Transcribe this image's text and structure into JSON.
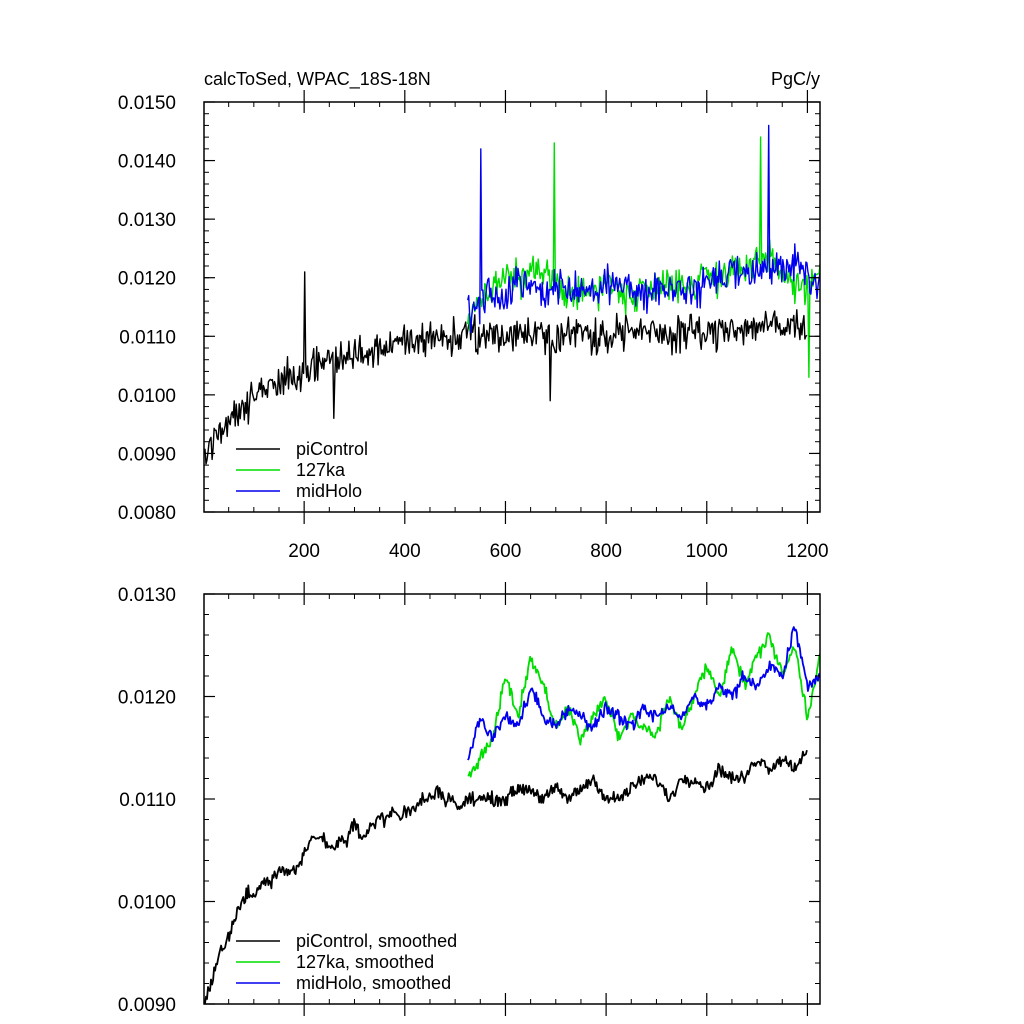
{
  "chart_data": [
    {
      "type": "line",
      "title": "calcToSed, WPAC_18S-18N",
      "units": "PgC/y",
      "xlim": [
        1,
        1225
      ],
      "ylim": [
        0.008,
        0.015
      ],
      "xticks": [
        200,
        400,
        600,
        800,
        1000,
        1200
      ],
      "xtick_labels": [
        "200",
        "400",
        "600",
        "800",
        "1000",
        "1200"
      ],
      "yticks": [
        0.008,
        0.009,
        0.01,
        0.011,
        0.012,
        0.013,
        0.014,
        0.015
      ],
      "ytick_labels": [
        "0.0080",
        "0.0090",
        "0.0100",
        "0.0110",
        "0.0120",
        "0.0130",
        "0.0140",
        "0.0150"
      ],
      "legend_position": "bottom-left",
      "series": [
        {
          "name": "piControl",
          "color": "#000000",
          "x": [
            1,
            25,
            50,
            75,
            100,
            125,
            150,
            175,
            200,
            225,
            250,
            275,
            300,
            325,
            350,
            375,
            400,
            425,
            450,
            475,
            500,
            525,
            550,
            575,
            600,
            625,
            650,
            675,
            700,
            725,
            750,
            775,
            800,
            825,
            850,
            875,
            900,
            925,
            950,
            975,
            1000,
            1025,
            1050,
            1075,
            1100,
            1125,
            1150,
            1175,
            1200
          ],
          "y": [
            0.0089,
            0.0093,
            0.0096,
            0.0098,
            0.01,
            0.0101,
            0.0102,
            0.0103,
            0.0104,
            0.0105,
            0.0106,
            0.0106,
            0.0107,
            0.0107,
            0.0108,
            0.0108,
            0.0109,
            0.0109,
            0.011,
            0.011,
            0.011,
            0.011,
            0.011,
            0.011,
            0.011,
            0.0111,
            0.011,
            0.0111,
            0.011,
            0.011,
            0.0111,
            0.011,
            0.011,
            0.0111,
            0.0111,
            0.011,
            0.0111,
            0.011,
            0.0111,
            0.0111,
            0.011,
            0.0111,
            0.0112,
            0.0111,
            0.0112,
            0.0112,
            0.0111,
            0.0112,
            0.0112
          ],
          "peaks": [
            {
              "x": 202,
              "y": 0.0121
            },
            {
              "x": 260,
              "y": 0.0096
            },
            {
              "x": 690,
              "y": 0.0099
            }
          ]
        },
        {
          "name": "127ka",
          "color": "#00dd00",
          "x": [
            525,
            550,
            575,
            600,
            625,
            650,
            675,
            700,
            725,
            750,
            775,
            800,
            825,
            850,
            875,
            900,
            925,
            950,
            975,
            1000,
            1025,
            1050,
            1075,
            1100,
            1125,
            1150,
            1175,
            1200,
            1225
          ],
          "y": [
            0.0113,
            0.0116,
            0.0118,
            0.0121,
            0.0119,
            0.0121,
            0.012,
            0.0119,
            0.0118,
            0.0117,
            0.0118,
            0.0119,
            0.0118,
            0.0117,
            0.0118,
            0.0119,
            0.012,
            0.0118,
            0.0119,
            0.0121,
            0.012,
            0.0122,
            0.0121,
            0.0122,
            0.0123,
            0.0121,
            0.0119,
            0.0118,
            0.0121
          ],
          "peaks": [
            {
              "x": 697,
              "y": 0.0143
            },
            {
              "x": 1108,
              "y": 0.0144
            },
            {
              "x": 1203,
              "y": 0.0103
            }
          ]
        },
        {
          "name": "midHolo",
          "color": "#0000ee",
          "x": [
            525,
            550,
            575,
            600,
            625,
            650,
            675,
            700,
            725,
            750,
            775,
            800,
            825,
            850,
            875,
            900,
            925,
            950,
            975,
            1000,
            1025,
            1050,
            1075,
            1100,
            1125,
            1150,
            1175,
            1200,
            1225
          ],
          "y": [
            0.0114,
            0.0116,
            0.0118,
            0.0117,
            0.0119,
            0.0118,
            0.0117,
            0.0119,
            0.0118,
            0.0117,
            0.0118,
            0.0118,
            0.0119,
            0.0118,
            0.0117,
            0.0118,
            0.0119,
            0.0118,
            0.0118,
            0.0119,
            0.012,
            0.0121,
            0.012,
            0.0121,
            0.0122,
            0.0121,
            0.0122,
            0.0121,
            0.012
          ],
          "peaks": [
            {
              "x": 552,
              "y": 0.0142
            },
            {
              "x": 1123,
              "y": 0.0146
            }
          ]
        }
      ]
    },
    {
      "type": "line",
      "xlim": [
        1,
        1225
      ],
      "ylim": [
        0.009,
        0.013
      ],
      "xticks": [
        200,
        400,
        600,
        800,
        1000,
        1200
      ],
      "yticks": [
        0.009,
        0.01,
        0.011,
        0.012,
        0.013
      ],
      "ytick_labels": [
        "0.0090",
        "0.0100",
        "0.0110",
        "0.0120",
        "0.0130"
      ],
      "legend_position": "bottom-left",
      "series": [
        {
          "name": "piControl, smoothed",
          "color": "#000000",
          "x": [
            1,
            15,
            30,
            45,
            60,
            75,
            90,
            105,
            120,
            135,
            150,
            165,
            180,
            195,
            210,
            225,
            240,
            255,
            270,
            285,
            300,
            315,
            330,
            345,
            360,
            375,
            390,
            405,
            420,
            435,
            450,
            465,
            480,
            495,
            510,
            525,
            550,
            575,
            600,
            625,
            650,
            675,
            700,
            725,
            750,
            775,
            800,
            825,
            850,
            875,
            900,
            925,
            950,
            975,
            1000,
            1025,
            1050,
            1075,
            1100,
            1125,
            1150,
            1175,
            1200
          ],
          "y": [
            0.009,
            0.0092,
            0.0095,
            0.0096,
            0.0098,
            0.01,
            0.0101,
            0.0101,
            0.0102,
            0.0102,
            0.0103,
            0.0103,
            0.0103,
            0.0104,
            0.0106,
            0.0106,
            0.0106,
            0.0105,
            0.0106,
            0.0106,
            0.0108,
            0.0106,
            0.0107,
            0.0108,
            0.0108,
            0.0109,
            0.0108,
            0.0109,
            0.0109,
            0.011,
            0.011,
            0.0111,
            0.011,
            0.011,
            0.0109,
            0.011,
            0.011,
            0.011,
            0.011,
            0.0111,
            0.0111,
            0.011,
            0.0111,
            0.011,
            0.0111,
            0.0112,
            0.011,
            0.011,
            0.0111,
            0.0112,
            0.0112,
            0.011,
            0.0112,
            0.0112,
            0.0111,
            0.0113,
            0.0112,
            0.0112,
            0.0114,
            0.0113,
            0.0114,
            0.0113,
            0.0115
          ]
        },
        {
          "name": "127ka, smoothed",
          "color": "#00dd00",
          "x": [
            525,
            550,
            575,
            600,
            625,
            650,
            675,
            700,
            725,
            750,
            775,
            800,
            825,
            850,
            875,
            900,
            925,
            950,
            975,
            1000,
            1025,
            1050,
            1075,
            1100,
            1125,
            1150,
            1175,
            1200,
            1225
          ],
          "y": [
            0.0112,
            0.0114,
            0.0116,
            0.0122,
            0.0118,
            0.0124,
            0.0121,
            0.0117,
            0.0119,
            0.0116,
            0.0118,
            0.012,
            0.0116,
            0.0118,
            0.0117,
            0.0116,
            0.012,
            0.0117,
            0.012,
            0.0123,
            0.012,
            0.0125,
            0.0121,
            0.0124,
            0.0126,
            0.0122,
            0.0125,
            0.0118,
            0.0124
          ]
        },
        {
          "name": "midHolo, smoothed",
          "color": "#0000ee",
          "x": [
            525,
            550,
            575,
            600,
            625,
            650,
            675,
            700,
            725,
            750,
            775,
            800,
            825,
            850,
            875,
            900,
            925,
            950,
            975,
            1000,
            1025,
            1050,
            1075,
            1100,
            1125,
            1150,
            1175,
            1200,
            1225
          ],
          "y": [
            0.0114,
            0.0118,
            0.0116,
            0.0118,
            0.0117,
            0.0121,
            0.0118,
            0.0117,
            0.0119,
            0.0118,
            0.0117,
            0.0119,
            0.0118,
            0.0117,
            0.0119,
            0.0118,
            0.0119,
            0.0118,
            0.012,
            0.0119,
            0.0121,
            0.012,
            0.0122,
            0.0121,
            0.0123,
            0.0122,
            0.0127,
            0.0121,
            0.0122
          ]
        }
      ]
    }
  ]
}
